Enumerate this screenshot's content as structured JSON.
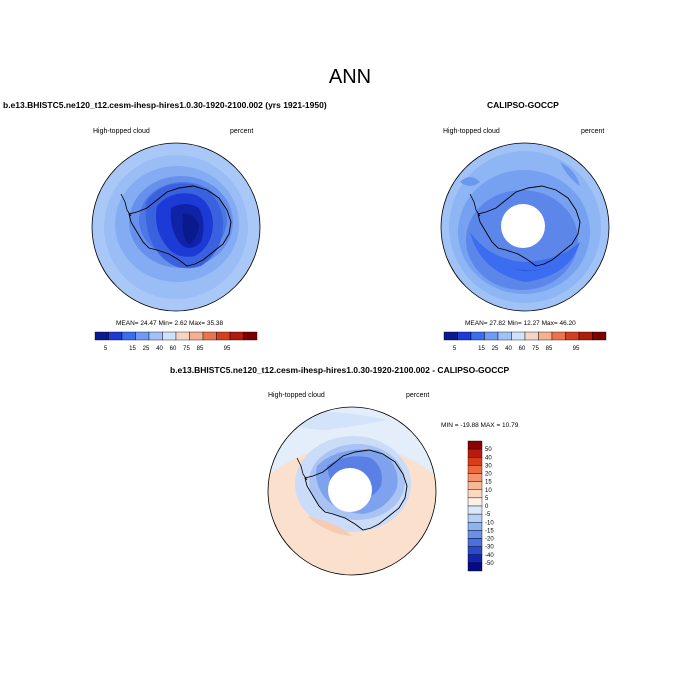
{
  "page_title": "ANN",
  "colorbar_levels": [
    "5",
    "15",
    "25",
    "40",
    "60",
    "75",
    "85",
    "95"
  ],
  "colorbar_colors": [
    "#0a1a8c",
    "#1b3ad6",
    "#3c6cf0",
    "#6f9bf5",
    "#9fc2f8",
    "#cfe2fb",
    "#f4d5c4",
    "#f5b090",
    "#ec7350",
    "#d3401f",
    "#b01a0c",
    "#7d0000"
  ],
  "diff_levels": [
    "50",
    "40",
    "30",
    "20",
    "15",
    "10",
    "5",
    "0",
    "-5",
    "-10",
    "-15",
    "-20",
    "-30",
    "-40",
    "-50"
  ],
  "diff_colors": [
    "#8b0000",
    "#b81c0c",
    "#d83d1a",
    "#ef6a3e",
    "#f5946c",
    "#f8b896",
    "#fcd8c0",
    "#fff0e4",
    "#d9e8fb",
    "#b5d0f6",
    "#8db2f0",
    "#6a91ea",
    "#4a6fe0",
    "#2c4ad0",
    "#1224b2",
    "#070a86"
  ],
  "panels": {
    "top_left": {
      "case_title": "b.e13.BHISTC5.ne120_t12.cesm-ihesp-hires1.0.30-1920-2100.002 (yrs 1921-1950)",
      "left_label": "High-topped cloud",
      "right_label": "percent",
      "stats": "MEAN= 24.47  Min=   2.62  Max=  35.38"
    },
    "top_right": {
      "case_title": "CALIPSO-GOCCP",
      "left_label": "High-topped cloud",
      "right_label": "percent",
      "stats": "MEAN= 27.82  Min=  12.27  Max=  46.20"
    },
    "bottom": {
      "case_title": "b.e13.BHISTC5.ne120_t12.cesm-ihesp-hires1.0.30-1920-2100.002 - CALIPSO-GOCCP",
      "left_label": "High-topped cloud",
      "right_label": "percent",
      "stats": "MIN = -19.88 MAX =  10.79"
    }
  }
}
